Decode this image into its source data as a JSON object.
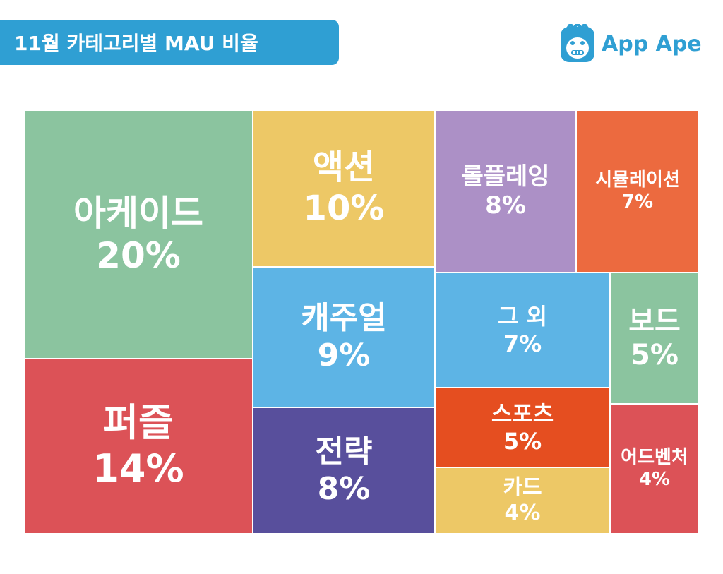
{
  "header": {
    "title": "11월 카테고리별 MAU 비율"
  },
  "logo": {
    "text": "App Ape",
    "icon": "ape-face-icon",
    "color": "#2f9fd3"
  },
  "chart_data": {
    "type": "treemap",
    "title": "11월 카테고리별 MAU 비율",
    "unit": "%",
    "items": [
      {
        "label": "아케이드",
        "value": 20,
        "value_label": "20%",
        "color": "#8bc49f"
      },
      {
        "label": "퍼즐",
        "value": 14,
        "value_label": "14%",
        "color": "#dc5257"
      },
      {
        "label": "액션",
        "value": 10,
        "value_label": "10%",
        "color": "#edc866"
      },
      {
        "label": "캐주얼",
        "value": 9,
        "value_label": "9%",
        "color": "#5db4e5"
      },
      {
        "label": "전략",
        "value": 8,
        "value_label": "8%",
        "color": "#584f9c"
      },
      {
        "label": "롤플레잉",
        "value": 8,
        "value_label": "8%",
        "color": "#ac90c6"
      },
      {
        "label": "시뮬레이션",
        "value": 7,
        "value_label": "7%",
        "color": "#ec6a3f"
      },
      {
        "label": "그 외",
        "value": 7,
        "value_label": "7%",
        "color": "#5db4e5"
      },
      {
        "label": "보드",
        "value": 5,
        "value_label": "5%",
        "color": "#8bc49f"
      },
      {
        "label": "스포츠",
        "value": 5,
        "value_label": "5%",
        "color": "#e54e20"
      },
      {
        "label": "카드",
        "value": 4,
        "value_label": "4%",
        "color": "#edc866"
      },
      {
        "label": "어드벤처",
        "value": 4,
        "value_label": "4%",
        "color": "#dc5257"
      }
    ]
  }
}
